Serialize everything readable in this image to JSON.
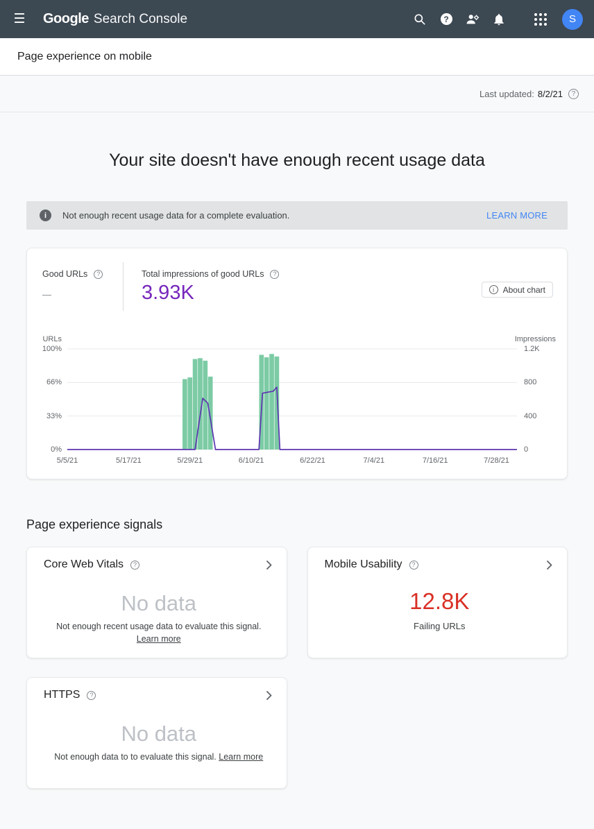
{
  "colors": {
    "header_bg": "#3c4852",
    "accent_blue": "#4285f4",
    "metric_purple": "#7627bb",
    "line_purple": "#5e35b1",
    "bar_green": "#7ccba5",
    "error_red": "#d93025",
    "nodata_gray": "#bdc1c6",
    "gridline": "#e8eaed"
  },
  "header": {
    "brand_google": "Google",
    "brand_product": "Search Console",
    "avatar_letter": "S"
  },
  "subheader": {
    "title": "Page experience on mobile"
  },
  "meta": {
    "last_updated_label": "Last updated:",
    "last_updated_value": "8/2/21"
  },
  "main": {
    "headline": "Your site doesn't have enough recent usage data",
    "banner": {
      "message": "Not enough recent usage data for a complete evaluation.",
      "action_label": "LEARN MORE"
    }
  },
  "chart_card": {
    "good_urls_label": "Good URLs",
    "good_urls_value": "—",
    "impressions_label": "Total impressions of good URLs",
    "impressions_value": "3.93K",
    "about_chart_label": "About chart"
  },
  "chart_data": {
    "type": "bar",
    "title": "Good URLs and impressions over time",
    "grid": true,
    "legend_position": "none",
    "x_axis": {
      "domain_days": [
        0,
        88
      ],
      "ticks": [
        {
          "label": "5/5/21",
          "day": 0
        },
        {
          "label": "5/17/21",
          "day": 12
        },
        {
          "label": "5/29/21",
          "day": 24
        },
        {
          "label": "6/10/21",
          "day": 36
        },
        {
          "label": "6/22/21",
          "day": 48
        },
        {
          "label": "7/4/21",
          "day": 60
        },
        {
          "label": "7/16/21",
          "day": 72
        },
        {
          "label": "7/28/21",
          "day": 84
        }
      ]
    },
    "left_axis": {
      "label": "URLs",
      "range": [
        0,
        100
      ],
      "ticks": [
        {
          "label": "100%",
          "value": 100
        },
        {
          "label": "66%",
          "value": 66.67
        },
        {
          "label": "33%",
          "value": 33.33
        },
        {
          "label": "0%",
          "value": 0
        }
      ]
    },
    "right_axis": {
      "label": "Impressions",
      "range": [
        0,
        1200
      ],
      "ticks": [
        {
          "label": "1.2K",
          "value": 1200
        },
        {
          "label": "800",
          "value": 800
        },
        {
          "label": "400",
          "value": 400
        },
        {
          "label": "0",
          "value": 0
        }
      ]
    },
    "series": [
      {
        "name": "Impressions of good URLs",
        "type": "bar",
        "axis": "right",
        "points": [
          {
            "day": 23,
            "value": 840
          },
          {
            "day": 24,
            "value": 860
          },
          {
            "day": 25,
            "value": 1080
          },
          {
            "day": 26,
            "value": 1090
          },
          {
            "day": 27,
            "value": 1060
          },
          {
            "day": 28,
            "value": 870
          },
          {
            "day": 38,
            "value": 1130
          },
          {
            "day": 39,
            "value": 1100
          },
          {
            "day": 40,
            "value": 1140
          },
          {
            "day": 41,
            "value": 1110
          }
        ]
      },
      {
        "name": "Good URLs",
        "type": "line",
        "axis": "left",
        "points": [
          {
            "day": 0,
            "value": 0
          },
          {
            "day": 25,
            "value": 0
          },
          {
            "day": 26.5,
            "value": 51
          },
          {
            "day": 27.5,
            "value": 46
          },
          {
            "day": 29,
            "value": 0
          },
          {
            "day": 37.5,
            "value": 0
          },
          {
            "day": 38.2,
            "value": 56
          },
          {
            "day": 40.3,
            "value": 58
          },
          {
            "day": 41,
            "value": 62
          },
          {
            "day": 41.6,
            "value": 0
          },
          {
            "day": 88,
            "value": 0
          }
        ]
      }
    ]
  },
  "signals": {
    "section_title": "Page experience signals",
    "cards": [
      {
        "title": "Core Web Vitals",
        "value": "No data",
        "state": "nodata",
        "description": "Not enough recent usage data to evaluate this signal.",
        "link_label": "Learn more"
      },
      {
        "title": "Mobile Usability",
        "value": "12.8K",
        "state": "error",
        "description": "Failing URLs"
      },
      {
        "title": "HTTPS",
        "value": "No data",
        "state": "nodata",
        "description": "Not enough data to to evaluate this signal.",
        "link_label": "Learn more"
      }
    ]
  }
}
